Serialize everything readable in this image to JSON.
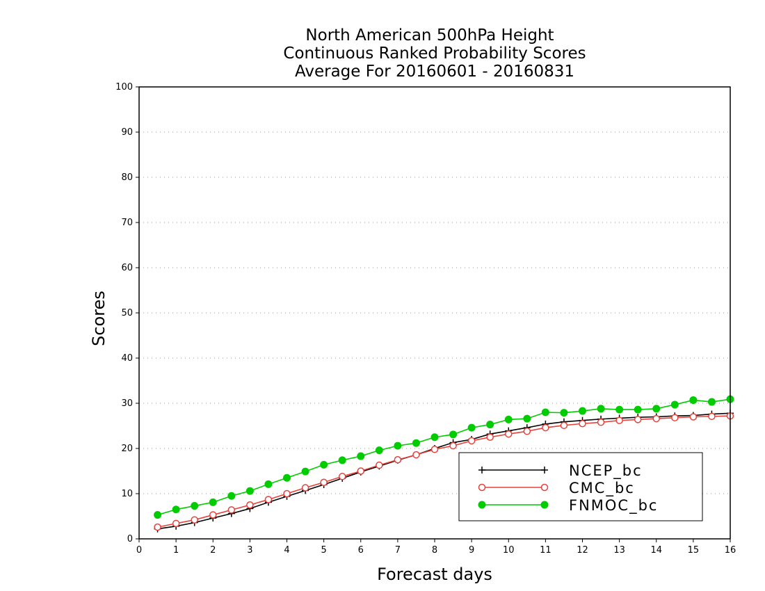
{
  "chart_data": {
    "type": "line",
    "title_lines": [
      "North American 500hPa Height",
      "Continuous Ranked Probability Scores",
      "Average For 20160601 - 20160831"
    ],
    "xlabel": "Forecast days",
    "ylabel": "Scores",
    "xlim": [
      0,
      16
    ],
    "ylim": [
      0,
      100
    ],
    "xticks": [
      0,
      1,
      2,
      3,
      4,
      5,
      6,
      7,
      8,
      9,
      10,
      11,
      12,
      13,
      14,
      15,
      16
    ],
    "yticks": [
      0,
      10,
      20,
      30,
      40,
      50,
      60,
      70,
      80,
      90,
      100
    ],
    "grid": "horizontal dotted",
    "legend_position": "lower-right",
    "x": [
      0.5,
      1.0,
      1.5,
      2.0,
      2.5,
      3.0,
      3.5,
      4.0,
      4.5,
      5.0,
      5.5,
      6.0,
      6.5,
      7.0,
      7.5,
      8.0,
      8.5,
      9.0,
      9.5,
      10.0,
      10.5,
      11.0,
      11.5,
      12.0,
      12.5,
      13.0,
      13.5,
      14.0,
      14.5,
      15.0,
      15.5,
      16.0
    ],
    "series": [
      {
        "name": "NCEP_bc",
        "color": "#000000",
        "marker": "plus",
        "values": [
          2.2,
          2.8,
          3.6,
          4.6,
          5.6,
          6.7,
          8.1,
          9.4,
          10.7,
          12.0,
          13.4,
          14.8,
          16.1,
          17.4,
          18.6,
          20.0,
          21.3,
          22.0,
          23.2,
          23.9,
          24.6,
          25.4,
          25.9,
          26.2,
          26.5,
          26.7,
          26.9,
          27.0,
          27.2,
          27.3,
          27.6,
          27.8
        ]
      },
      {
        "name": "CMC_bc",
        "color": "#e8403a",
        "marker": "open-circle",
        "values": [
          2.6,
          3.4,
          4.2,
          5.3,
          6.4,
          7.5,
          8.7,
          10.0,
          11.3,
          12.5,
          13.8,
          15.0,
          16.3,
          17.5,
          18.6,
          19.8,
          20.6,
          21.7,
          22.5,
          23.2,
          23.8,
          24.6,
          25.1,
          25.5,
          25.8,
          26.2,
          26.4,
          26.6,
          26.8,
          27.0,
          27.1,
          27.2
        ]
      },
      {
        "name": "FNMOC_bc",
        "color": "#00cc00",
        "marker": "filled-circle",
        "values": [
          5.3,
          6.5,
          7.3,
          8.1,
          9.5,
          10.6,
          12.1,
          13.5,
          14.9,
          16.4,
          17.4,
          18.3,
          19.6,
          20.6,
          21.2,
          22.5,
          23.1,
          24.6,
          25.3,
          26.4,
          26.6,
          28.0,
          27.9,
          28.3,
          28.8,
          28.6,
          28.6,
          28.8,
          29.7,
          30.7,
          30.3,
          30.9
        ]
      }
    ]
  }
}
